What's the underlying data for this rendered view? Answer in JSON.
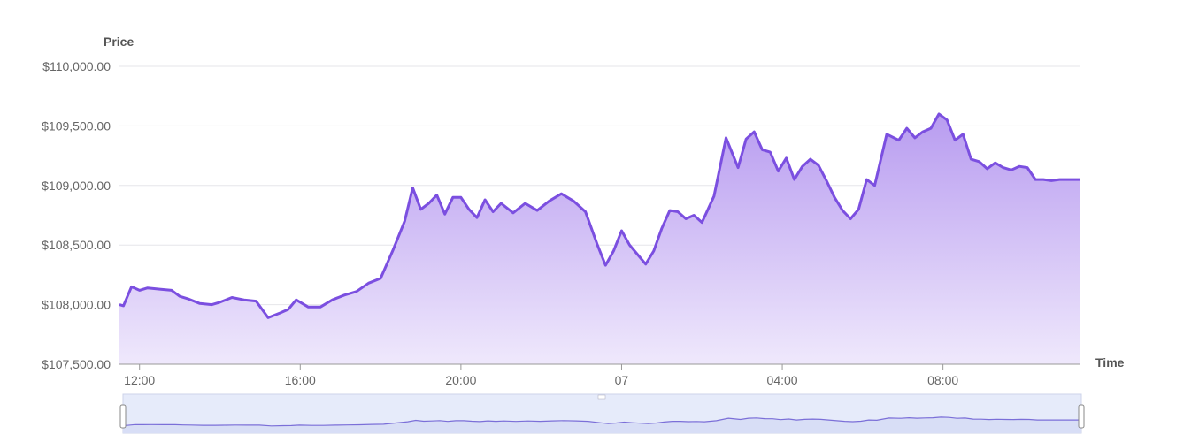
{
  "chart_data": {
    "type": "area",
    "ylabel": "Price",
    "xlabel": "Time",
    "ylim": [
      107500,
      110000
    ],
    "y_ticks": [
      {
        "value": 107500,
        "label": "$107,500.00"
      },
      {
        "value": 108000,
        "label": "$108,000.00"
      },
      {
        "value": 108500,
        "label": "$108,500.00"
      },
      {
        "value": 109000,
        "label": "$109,000.00"
      },
      {
        "value": 109500,
        "label": "$109,500.00"
      },
      {
        "value": 110000,
        "label": "$110,000.00"
      }
    ],
    "x_range_hours": [
      11.5,
      35.4
    ],
    "x_ticks": [
      {
        "hour": 12,
        "label": "12:00"
      },
      {
        "hour": 16,
        "label": "16:00"
      },
      {
        "hour": 20,
        "label": "20:00"
      },
      {
        "hour": 24,
        "label": "07"
      },
      {
        "hour": 28,
        "label": "04:00"
      },
      {
        "hour": 32,
        "label": "08:00"
      }
    ],
    "grid": true,
    "series": [
      {
        "x_hours": [
          11.5,
          11.6,
          11.8,
          12.0,
          12.2,
          12.5,
          12.8,
          13.0,
          13.2,
          13.5,
          13.8,
          14.0,
          14.3,
          14.6,
          14.9,
          15.2,
          15.5,
          15.7,
          15.9,
          16.2,
          16.5,
          16.8,
          17.1,
          17.4,
          17.7,
          18.0,
          18.3,
          18.6,
          18.8,
          19.0,
          19.2,
          19.4,
          19.6,
          19.8,
          20.0,
          20.2,
          20.4,
          20.6,
          20.8,
          21.0,
          21.3,
          21.6,
          21.9,
          22.2,
          22.5,
          22.8,
          23.1,
          23.4,
          23.6,
          23.8,
          24.0,
          24.2,
          24.4,
          24.6,
          24.8,
          25.0,
          25.2,
          25.4,
          25.6,
          25.8,
          26.0,
          26.3,
          26.6,
          26.9,
          27.1,
          27.3,
          27.5,
          27.7,
          27.9,
          28.1,
          28.3,
          28.5,
          28.7,
          28.9,
          29.1,
          29.3,
          29.5,
          29.7,
          29.9,
          30.1,
          30.3,
          30.6,
          30.9,
          31.1,
          31.3,
          31.5,
          31.7,
          31.9,
          32.1,
          32.3,
          32.5,
          32.7,
          32.9,
          33.1,
          33.3,
          33.5,
          33.7,
          33.9,
          34.1,
          34.3,
          34.5,
          34.7,
          34.9,
          35.1,
          35.3,
          35.4
        ],
        "values": [
          108000,
          107990,
          108150,
          108120,
          108140,
          108130,
          108120,
          108070,
          108050,
          108010,
          108000,
          108020,
          108060,
          108040,
          108030,
          107890,
          107930,
          107960,
          108040,
          107980,
          107980,
          108040,
          108080,
          108110,
          108180,
          108220,
          108450,
          108700,
          108980,
          108800,
          108850,
          108920,
          108760,
          108900,
          108900,
          108800,
          108730,
          108880,
          108780,
          108850,
          108770,
          108850,
          108790,
          108870,
          108930,
          108870,
          108780,
          108500,
          108330,
          108450,
          108620,
          108500,
          108420,
          108340,
          108450,
          108640,
          108790,
          108780,
          108720,
          108750,
          108690,
          108910,
          109400,
          109150,
          109390,
          109450,
          109300,
          109280,
          109120,
          109230,
          109050,
          109160,
          109220,
          109170,
          109040,
          108900,
          108790,
          108720,
          108800,
          109050,
          109000,
          109430,
          109380,
          109480,
          109400,
          109450,
          109480,
          109600,
          109550,
          109380,
          109430,
          109220,
          109200,
          109140,
          109190,
          109150,
          109130,
          109160,
          109150,
          109050,
          109050,
          109040,
          109050,
          109050,
          109050,
          109050
        ]
      }
    ],
    "colors": {
      "line": "#7b4fe0",
      "fill_top": "#b89cf0",
      "fill_bottom": "#efe8fc",
      "navigator_fill": "#e6ebfa",
      "navigator_line": "#7b6fd8"
    }
  }
}
